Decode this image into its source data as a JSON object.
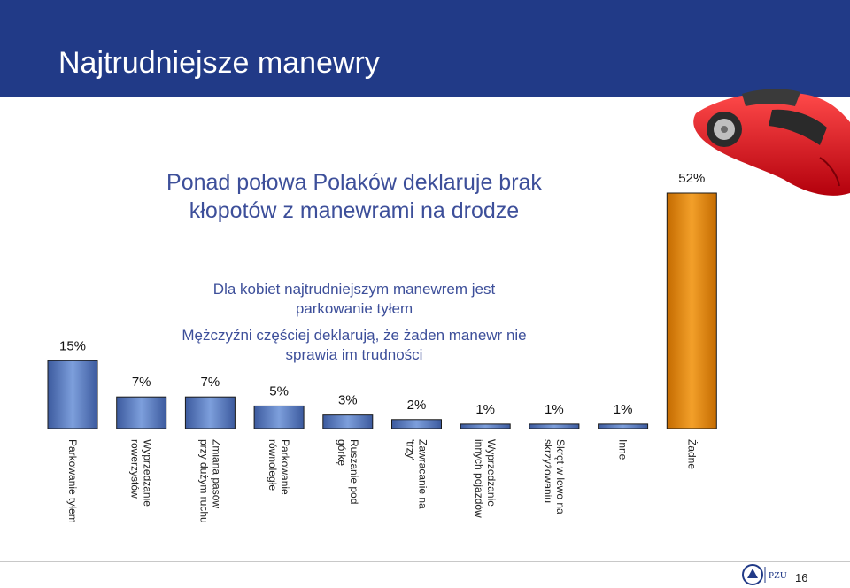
{
  "slide": {
    "title": "Najtrudniejsze manewry",
    "headline_line1": "Ponad połowa Polaków deklaruje brak",
    "headline_line2": "kłopotów z manewrami na drodze",
    "note_women_line1": "Dla kobiet najtrudniejszym manewrem jest",
    "note_women_line2": "parkowanie tyłem",
    "note_men_line1": "Mężczyźni częściej deklarują, że żaden manewr nie",
    "note_men_line2": "sprawia im trudności",
    "page_number": "16",
    "logo_text": "PZU",
    "colors": {
      "header": "#213a87",
      "text": "#3d4f9a",
      "bar_blue": "#5a7cc0",
      "bar_orange": "#e8890c"
    }
  },
  "chart_data": {
    "type": "bar",
    "categories": [
      "Parkowanie tyłem",
      "Wyprzedzanie\nrowerzystów",
      "Zmiana pasów\nprzy dużym ruchu",
      "Parkowanie\nrównoległe",
      "Ruszanie pod\ngórkę",
      "Zawracanie na\n'trzy'",
      "Wyprzedzanie\ninnych pojazdów",
      "Skręt w lewo na\nskrzyżowaniu",
      "Inne",
      "Żadne"
    ],
    "values": [
      15,
      7,
      7,
      5,
      3,
      2,
      1,
      1,
      1,
      52
    ],
    "data_labels": [
      "15%",
      "7%",
      "7%",
      "5%",
      "3%",
      "2%",
      "1%",
      "1%",
      "1%",
      "52%"
    ],
    "highlight_index": 9,
    "ylim": [
      0,
      52
    ],
    "grid": false,
    "legend": "none",
    "title": "",
    "xlabel": "",
    "ylabel": ""
  }
}
